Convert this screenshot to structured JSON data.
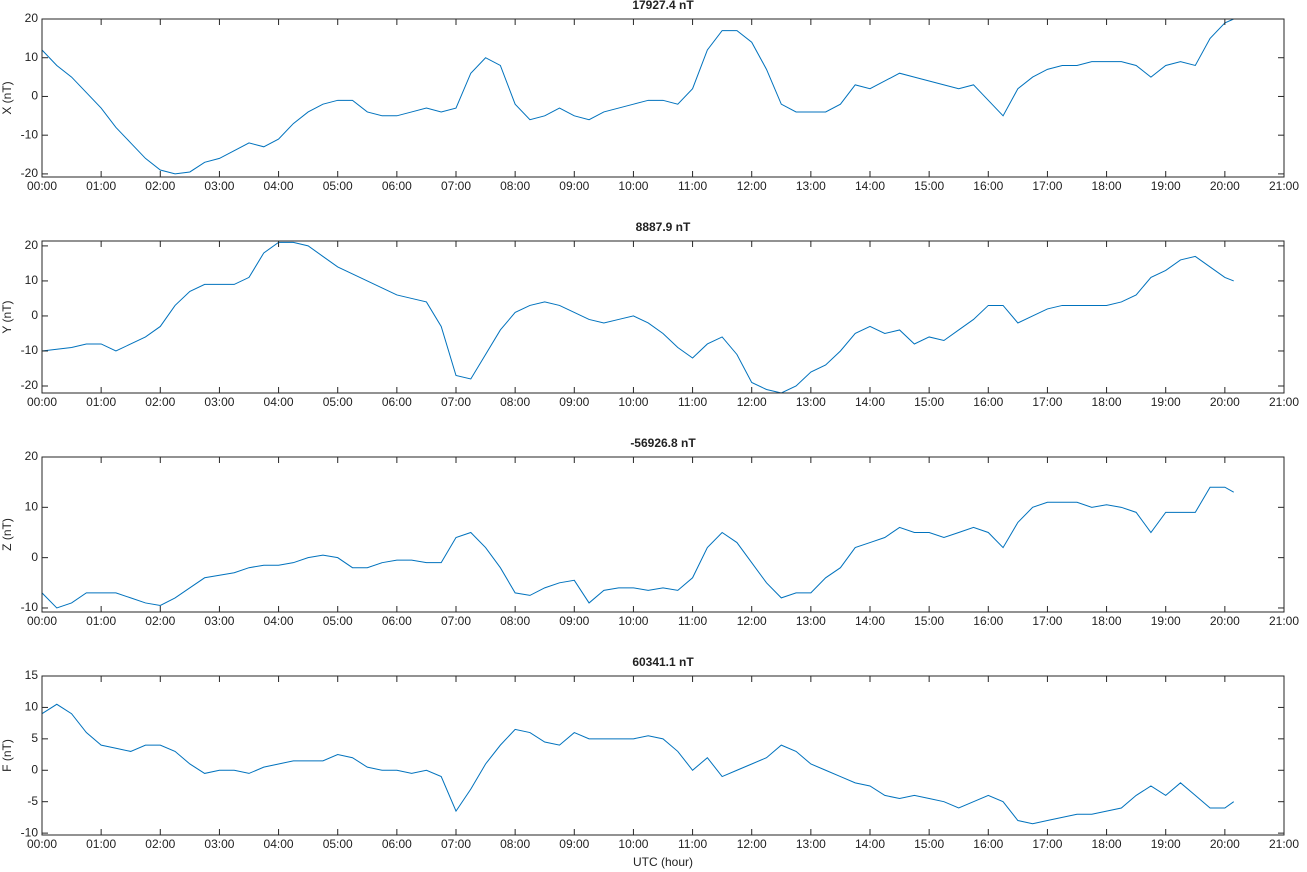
{
  "chart_data": [
    {
      "type": "line",
      "title": "17927.4 nT",
      "y_label": "X (nT)",
      "color": "#0072bd",
      "x": [
        0,
        0.25,
        0.5,
        0.75,
        1,
        1.25,
        1.5,
        1.75,
        2,
        2.25,
        2.5,
        2.75,
        3,
        3.25,
        3.5,
        3.75,
        4,
        4.25,
        4.5,
        4.75,
        5,
        5.25,
        5.5,
        5.75,
        6,
        6.25,
        6.5,
        6.75,
        7,
        7.25,
        7.5,
        7.75,
        8,
        8.25,
        8.5,
        8.75,
        9,
        9.25,
        9.5,
        9.75,
        10,
        10.25,
        10.5,
        10.75,
        11,
        11.25,
        11.5,
        11.75,
        12,
        12.25,
        12.5,
        12.75,
        13,
        13.25,
        13.5,
        13.75,
        14,
        14.25,
        14.5,
        14.75,
        15,
        15.25,
        15.5,
        15.75,
        16,
        16.25,
        16.5,
        16.75,
        17,
        17.25,
        17.5,
        17.75,
        18,
        18.25,
        18.5,
        18.75,
        19,
        19.25,
        19.5,
        19.75,
        20,
        20.15
      ],
      "values": [
        12,
        8,
        5,
        1,
        -3,
        -8,
        -12,
        -16,
        -19,
        -20,
        -19.5,
        -17,
        -16,
        -14,
        -12,
        -13,
        -11,
        -7,
        -4,
        -2,
        -1,
        -1,
        -4,
        -5,
        -5,
        -4,
        -3,
        -4,
        -3,
        6,
        10,
        8,
        -2,
        -6,
        -5,
        -3,
        -5,
        -6,
        -4,
        -3,
        -2,
        -1,
        -1,
        -2,
        2,
        12,
        17,
        17,
        14,
        7,
        -2,
        -4,
        -4,
        -4,
        -2,
        3,
        2,
        4,
        6,
        5,
        4,
        3,
        2,
        3,
        -1,
        -5,
        2,
        5,
        7,
        8,
        8,
        9,
        9,
        9,
        8,
        5,
        8,
        9,
        8,
        15,
        19,
        20
      ],
      "xlim": [
        0,
        21
      ],
      "xticks": [
        {
          "value": 0,
          "label": "00:00"
        },
        {
          "value": 1,
          "label": "01:00"
        },
        {
          "value": 2,
          "label": "02:00"
        },
        {
          "value": 3,
          "label": "03:00"
        },
        {
          "value": 4,
          "label": "04:00"
        },
        {
          "value": 5,
          "label": "05:00"
        },
        {
          "value": 6,
          "label": "06:00"
        },
        {
          "value": 7,
          "label": "07:00"
        },
        {
          "value": 8,
          "label": "08:00"
        },
        {
          "value": 9,
          "label": "09:00"
        },
        {
          "value": 10,
          "label": "10:00"
        },
        {
          "value": 11,
          "label": "11:00"
        },
        {
          "value": 12,
          "label": "12:00"
        },
        {
          "value": 13,
          "label": "13:00"
        },
        {
          "value": 14,
          "label": "14:00"
        },
        {
          "value": 15,
          "label": "15:00"
        },
        {
          "value": 16,
          "label": "16:00"
        },
        {
          "value": 17,
          "label": "17:00"
        },
        {
          "value": 18,
          "label": "18:00"
        },
        {
          "value": 19,
          "label": "19:00"
        },
        {
          "value": 20,
          "label": "20:00"
        },
        {
          "value": 21,
          "label": "21:00"
        }
      ],
      "ylim": [
        -20.8,
        20
      ],
      "yticks": [
        -20,
        -10,
        0,
        10,
        20
      ]
    },
    {
      "type": "line",
      "title": "8887.9 nT",
      "y_label": "Y (nT)",
      "color": "#0072bd",
      "x": [
        0,
        0.25,
        0.5,
        0.75,
        1,
        1.25,
        1.5,
        1.75,
        2,
        2.25,
        2.5,
        2.75,
        3,
        3.25,
        3.5,
        3.75,
        4,
        4.25,
        4.5,
        4.75,
        5,
        5.25,
        5.5,
        5.75,
        6,
        6.25,
        6.5,
        6.75,
        7,
        7.25,
        7.5,
        7.75,
        8,
        8.25,
        8.5,
        8.75,
        9,
        9.25,
        9.5,
        9.75,
        10,
        10.25,
        10.5,
        10.75,
        11,
        11.25,
        11.5,
        11.75,
        12,
        12.25,
        12.5,
        12.75,
        13,
        13.25,
        13.5,
        13.75,
        14,
        14.25,
        14.5,
        14.75,
        15,
        15.25,
        15.5,
        15.75,
        16,
        16.25,
        16.5,
        16.75,
        17,
        17.25,
        17.5,
        17.75,
        18,
        18.25,
        18.5,
        18.75,
        19,
        19.25,
        19.5,
        19.75,
        20,
        20.15
      ],
      "values": [
        -10,
        -9.5,
        -9,
        -8,
        -8,
        -10,
        -8,
        -6,
        -3,
        3,
        7,
        9,
        9,
        9,
        11,
        18,
        21,
        21,
        20,
        17,
        14,
        12,
        10,
        8,
        6,
        5,
        4,
        -3,
        -17,
        -18,
        -11,
        -4,
        1,
        3,
        4,
        3,
        1,
        -1,
        -2,
        -1,
        0,
        -2,
        -5,
        -9,
        -12,
        -8,
        -6,
        -11,
        -19,
        -21,
        -22,
        -20,
        -16,
        -14,
        -10,
        -5,
        -3,
        -5,
        -4,
        -8,
        -6,
        -7,
        -4,
        -1,
        3,
        3,
        -2,
        0,
        2,
        3,
        3,
        3,
        3,
        4,
        6,
        11,
        13,
        16,
        17,
        14,
        11,
        10
      ],
      "xlim": [
        0,
        21
      ],
      "xticks": [
        {
          "value": 0,
          "label": "00:00"
        },
        {
          "value": 1,
          "label": "01:00"
        },
        {
          "value": 2,
          "label": "02:00"
        },
        {
          "value": 3,
          "label": "03:00"
        },
        {
          "value": 4,
          "label": "04:00"
        },
        {
          "value": 5,
          "label": "05:00"
        },
        {
          "value": 6,
          "label": "06:00"
        },
        {
          "value": 7,
          "label": "07:00"
        },
        {
          "value": 8,
          "label": "08:00"
        },
        {
          "value": 9,
          "label": "09:00"
        },
        {
          "value": 10,
          "label": "10:00"
        },
        {
          "value": 11,
          "label": "11:00"
        },
        {
          "value": 12,
          "label": "12:00"
        },
        {
          "value": 13,
          "label": "13:00"
        },
        {
          "value": 14,
          "label": "14:00"
        },
        {
          "value": 15,
          "label": "15:00"
        },
        {
          "value": 16,
          "label": "16:00"
        },
        {
          "value": 17,
          "label": "17:00"
        },
        {
          "value": 18,
          "label": "18:00"
        },
        {
          "value": 19,
          "label": "19:00"
        },
        {
          "value": 20,
          "label": "20:00"
        },
        {
          "value": 21,
          "label": "21:00"
        }
      ],
      "ylim": [
        -22,
        21.4
      ],
      "yticks": [
        -20,
        -10,
        0,
        10,
        20
      ]
    },
    {
      "type": "line",
      "title": "-56926.8 nT",
      "y_label": "Z (nT)",
      "color": "#0072bd",
      "x": [
        0,
        0.25,
        0.5,
        0.75,
        1,
        1.25,
        1.5,
        1.75,
        2,
        2.25,
        2.5,
        2.75,
        3,
        3.25,
        3.5,
        3.75,
        4,
        4.25,
        4.5,
        4.75,
        5,
        5.25,
        5.5,
        5.75,
        6,
        6.25,
        6.5,
        6.75,
        7,
        7.25,
        7.5,
        7.75,
        8,
        8.25,
        8.5,
        8.75,
        9,
        9.25,
        9.5,
        9.75,
        10,
        10.25,
        10.5,
        10.75,
        11,
        11.25,
        11.5,
        11.75,
        12,
        12.25,
        12.5,
        12.75,
        13,
        13.25,
        13.5,
        13.75,
        14,
        14.25,
        14.5,
        14.75,
        15,
        15.25,
        15.5,
        15.75,
        16,
        16.25,
        16.5,
        16.75,
        17,
        17.25,
        17.5,
        17.75,
        18,
        18.25,
        18.5,
        18.75,
        19,
        19.25,
        19.5,
        19.75,
        20,
        20.15
      ],
      "values": [
        -7,
        -10,
        -9,
        -7,
        -7,
        -7,
        -8,
        -9,
        -9.5,
        -8,
        -6,
        -4,
        -3.5,
        -3,
        -2,
        -1.5,
        -1.5,
        -1,
        0,
        0.5,
        0,
        -2,
        -2,
        -1,
        -0.5,
        -0.5,
        -1,
        -1,
        4,
        5,
        2,
        -2,
        -7,
        -7.5,
        -6,
        -5,
        -4.5,
        -9,
        -6.5,
        -6,
        -6,
        -6.5,
        -6,
        -6.5,
        -4,
        2,
        5,
        3,
        -1,
        -5,
        -8,
        -7,
        -7,
        -4,
        -2,
        2,
        3,
        4,
        6,
        5,
        5,
        4,
        5,
        6,
        5,
        2,
        7,
        10,
        11,
        11,
        11,
        10,
        10.5,
        10,
        9,
        5,
        9,
        9,
        9,
        14,
        14,
        13
      ],
      "xlim": [
        0,
        21
      ],
      "xticks": [
        {
          "value": 0,
          "label": "00:00"
        },
        {
          "value": 1,
          "label": "01:00"
        },
        {
          "value": 2,
          "label": "02:00"
        },
        {
          "value": 3,
          "label": "03:00"
        },
        {
          "value": 4,
          "label": "04:00"
        },
        {
          "value": 5,
          "label": "05:00"
        },
        {
          "value": 6,
          "label": "06:00"
        },
        {
          "value": 7,
          "label": "07:00"
        },
        {
          "value": 8,
          "label": "08:00"
        },
        {
          "value": 9,
          "label": "09:00"
        },
        {
          "value": 10,
          "label": "10:00"
        },
        {
          "value": 11,
          "label": "11:00"
        },
        {
          "value": 12,
          "label": "12:00"
        },
        {
          "value": 13,
          "label": "13:00"
        },
        {
          "value": 14,
          "label": "14:00"
        },
        {
          "value": 15,
          "label": "15:00"
        },
        {
          "value": 16,
          "label": "16:00"
        },
        {
          "value": 17,
          "label": "17:00"
        },
        {
          "value": 18,
          "label": "18:00"
        },
        {
          "value": 19,
          "label": "19:00"
        },
        {
          "value": 20,
          "label": "20:00"
        },
        {
          "value": 21,
          "label": "21:00"
        }
      ],
      "ylim": [
        -10.8,
        20
      ],
      "yticks": [
        -10,
        0,
        10,
        20
      ]
    },
    {
      "type": "line",
      "title": "60341.1 nT",
      "y_label": "F (nT)",
      "x_label": "UTC (hour)",
      "color": "#0072bd",
      "x": [
        0,
        0.25,
        0.5,
        0.75,
        1,
        1.25,
        1.5,
        1.75,
        2,
        2.25,
        2.5,
        2.75,
        3,
        3.25,
        3.5,
        3.75,
        4,
        4.25,
        4.5,
        4.75,
        5,
        5.25,
        5.5,
        5.75,
        6,
        6.25,
        6.5,
        6.75,
        7,
        7.25,
        7.5,
        7.75,
        8,
        8.25,
        8.5,
        8.75,
        9,
        9.25,
        9.5,
        9.75,
        10,
        10.25,
        10.5,
        10.75,
        11,
        11.25,
        11.5,
        11.75,
        12,
        12.25,
        12.5,
        12.75,
        13,
        13.25,
        13.5,
        13.75,
        14,
        14.25,
        14.5,
        14.75,
        15,
        15.25,
        15.5,
        15.75,
        16,
        16.25,
        16.5,
        16.75,
        17,
        17.25,
        17.5,
        17.75,
        18,
        18.25,
        18.5,
        18.75,
        19,
        19.25,
        19.5,
        19.75,
        20,
        20.15
      ],
      "values": [
        9,
        10.5,
        9,
        6,
        4,
        3.5,
        3,
        4,
        4,
        3,
        1,
        -0.5,
        0,
        0,
        -0.5,
        0.5,
        1,
        1.5,
        1.5,
        1.5,
        2.5,
        2,
        0.5,
        0,
        0,
        -0.5,
        0,
        -1,
        -6.5,
        -3,
        1,
        4,
        6.5,
        6,
        4.5,
        4,
        6,
        5,
        5,
        5,
        5,
        5.5,
        5,
        3,
        0,
        2,
        -1,
        0,
        1,
        2,
        4,
        3,
        1,
        0,
        -1,
        -2,
        -2.5,
        -4,
        -4.5,
        -4,
        -4.5,
        -5,
        -6,
        -5,
        -4,
        -5,
        -8,
        -8.5,
        -8,
        -7.5,
        -7,
        -7,
        -6.5,
        -6,
        -4,
        -2.5,
        -4,
        -2,
        -4,
        -6,
        -6,
        -5
      ],
      "xlim": [
        0,
        21
      ],
      "xticks": [
        {
          "value": 0,
          "label": "00:00"
        },
        {
          "value": 1,
          "label": "01:00"
        },
        {
          "value": 2,
          "label": "02:00"
        },
        {
          "value": 3,
          "label": "03:00"
        },
        {
          "value": 4,
          "label": "04:00"
        },
        {
          "value": 5,
          "label": "05:00"
        },
        {
          "value": 6,
          "label": "06:00"
        },
        {
          "value": 7,
          "label": "07:00"
        },
        {
          "value": 8,
          "label": "08:00"
        },
        {
          "value": 9,
          "label": "09:00"
        },
        {
          "value": 10,
          "label": "10:00"
        },
        {
          "value": 11,
          "label": "11:00"
        },
        {
          "value": 12,
          "label": "12:00"
        },
        {
          "value": 13,
          "label": "13:00"
        },
        {
          "value": 14,
          "label": "14:00"
        },
        {
          "value": 15,
          "label": "15:00"
        },
        {
          "value": 16,
          "label": "16:00"
        },
        {
          "value": 17,
          "label": "17:00"
        },
        {
          "value": 18,
          "label": "18:00"
        },
        {
          "value": 19,
          "label": "19:00"
        },
        {
          "value": 20,
          "label": "20:00"
        },
        {
          "value": 21,
          "label": "21:00"
        }
      ],
      "ylim": [
        -10.3,
        15
      ],
      "yticks": [
        -10,
        -5,
        0,
        5,
        10,
        15
      ]
    }
  ]
}
